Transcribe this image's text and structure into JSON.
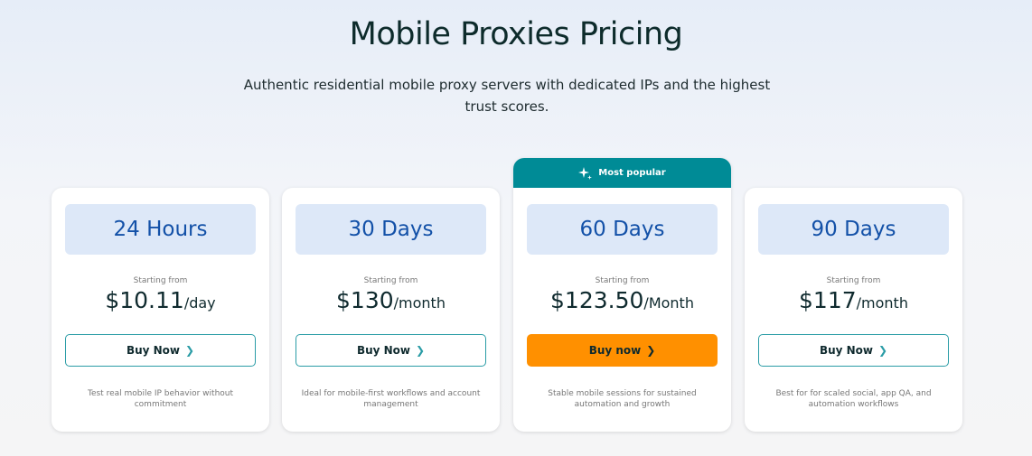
{
  "header": {
    "title": "Mobile Proxies Pricing",
    "subtitle": "Authentic residential mobile proxy servers with dedicated IPs and the highest trust scores."
  },
  "badge": {
    "label": "Most popular",
    "icon": "sparkle-icon"
  },
  "colors": {
    "accent": "#008b96",
    "cta": "#ff9000",
    "title_box": "#dde8f8",
    "title_text": "#1351a8"
  },
  "plans": [
    {
      "title": "24 Hours",
      "starting": "Starting from",
      "price": "$10.11",
      "unit": "/day",
      "button": "Buy Now",
      "desc": "Test real mobile IP behavior without commitment"
    },
    {
      "title": "30 Days",
      "starting": "Starting from",
      "price": "$130",
      "unit": "/month",
      "button": "Buy Now",
      "desc": "Ideal for mobile-first workflows and account management"
    },
    {
      "title": "60 Days",
      "starting": "Starting from",
      "price": "$123.50",
      "unit": "/Month",
      "button": "Buy now",
      "desc": "Stable mobile sessions for sustained automation and growth"
    },
    {
      "title": "90 Days",
      "starting": "Starting from",
      "price": "$117",
      "unit": "/month",
      "button": "Buy Now",
      "desc": "Best for for scaled social, app QA, and automation workflows"
    }
  ]
}
